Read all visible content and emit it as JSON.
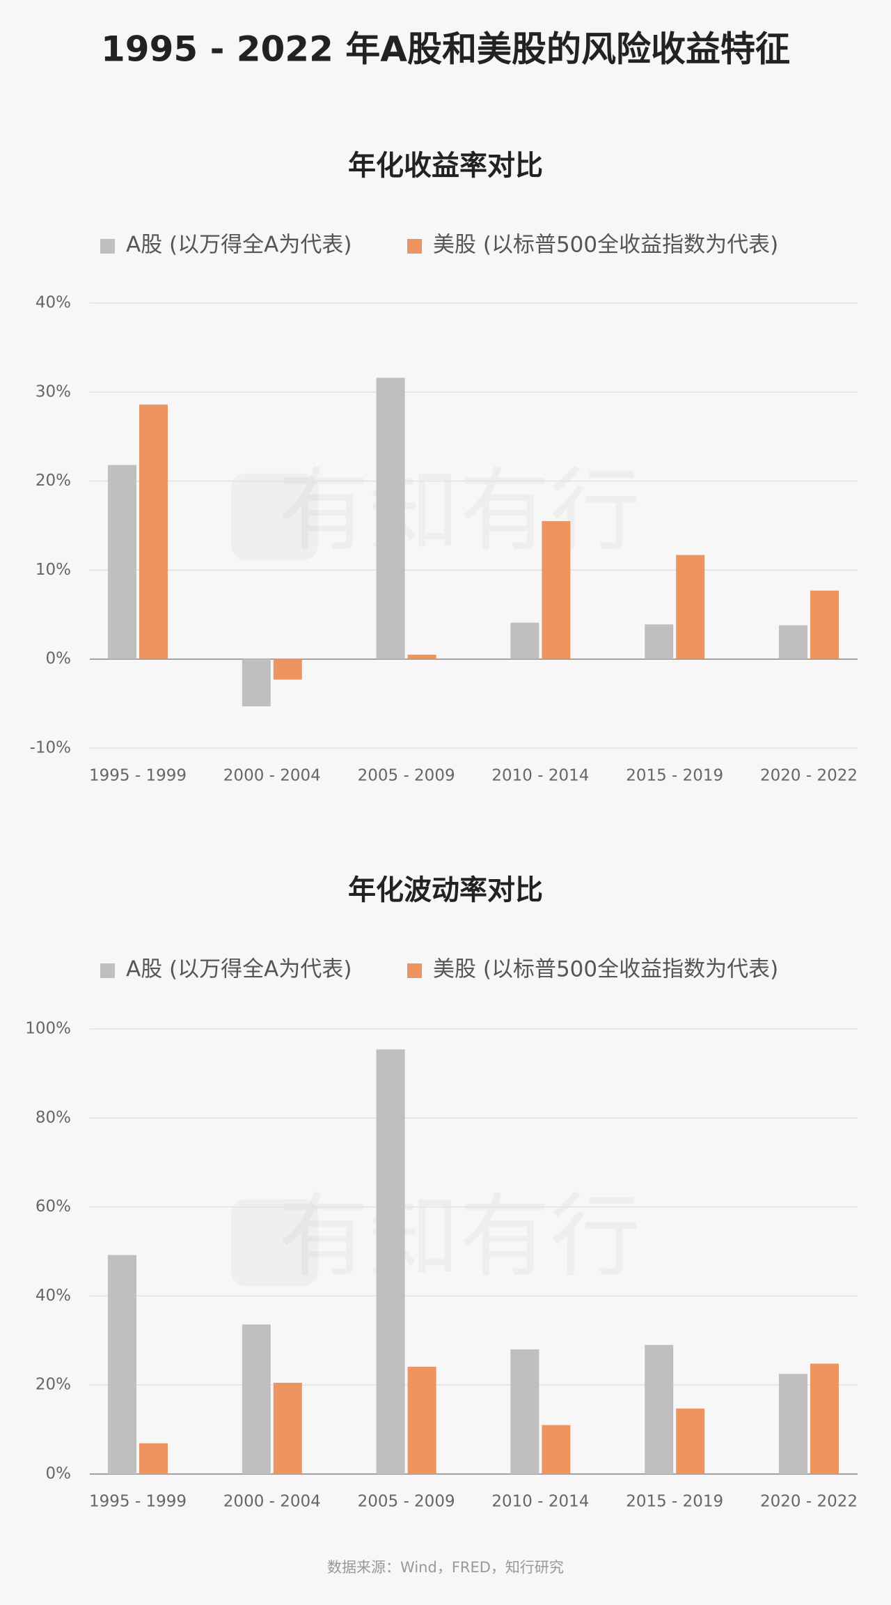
{
  "title": "1995 - 2022 年A股和美股的风险收益特征",
  "watermark": "有知有行",
  "source": "数据来源：Wind，FRED，知行研究",
  "chart_data": [
    {
      "type": "bar",
      "title": "年化收益率对比",
      "categories": [
        "1995 - 1999",
        "2000 - 2004",
        "2005 - 2009",
        "2010 - 2014",
        "2015 - 2019",
        "2020 - 2022"
      ],
      "series": [
        {
          "name": "A股 (以万得全A为代表)",
          "color": "#bfbfbf",
          "values": [
            21.8,
            -5.3,
            31.6,
            4.1,
            3.9,
            3.8
          ]
        },
        {
          "name": "美股 (以标普500全收益指数为代表)",
          "color": "#ed9460",
          "values": [
            28.6,
            -2.3,
            0.5,
            15.5,
            11.7,
            7.7
          ]
        }
      ],
      "ylim": [
        -10,
        40
      ],
      "yticks": [
        {
          "value": -10,
          "label": "-10%"
        },
        {
          "value": 0,
          "label": "0%"
        },
        {
          "value": 10,
          "label": "10%"
        },
        {
          "value": 20,
          "label": "20%"
        },
        {
          "value": 30,
          "label": "30%"
        },
        {
          "value": 40,
          "label": "40%"
        }
      ],
      "grid": true,
      "legend": "top"
    },
    {
      "type": "bar",
      "title": "年化波动率对比",
      "categories": [
        "1995 - 1999",
        "2000 - 2004",
        "2005 - 2009",
        "2010 - 2014",
        "2015 - 2019",
        "2020 - 2022"
      ],
      "series": [
        {
          "name": "A股 (以万得全A为代表)",
          "color": "#bfbfbf",
          "values": [
            49.2,
            33.6,
            95.4,
            28.0,
            29.0,
            22.5
          ]
        },
        {
          "name": "美股 (以标普500全收益指数为代表)",
          "color": "#ed9460",
          "values": [
            6.9,
            20.5,
            24.1,
            11.0,
            14.7,
            24.8
          ]
        }
      ],
      "ylim": [
        0,
        100
      ],
      "yticks": [
        {
          "value": 0,
          "label": "0%"
        },
        {
          "value": 20,
          "label": "20%"
        },
        {
          "value": 40,
          "label": "40%"
        },
        {
          "value": 60,
          "label": "60%"
        },
        {
          "value": 80,
          "label": "80%"
        },
        {
          "value": 100,
          "label": "100%"
        }
      ],
      "grid": true,
      "legend": "top"
    }
  ]
}
